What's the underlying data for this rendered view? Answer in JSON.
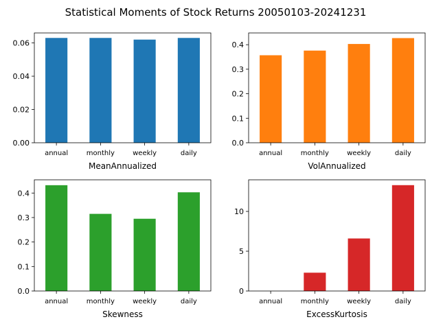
{
  "figure": {
    "title": "Statistical Moments of Stock Returns 20050103-20241231"
  },
  "chart_data": [
    {
      "type": "bar",
      "categories": [
        "annual",
        "monthly",
        "weekly",
        "daily"
      ],
      "values": [
        0.063,
        0.063,
        0.062,
        0.063
      ],
      "xlabel": "MeanAnnualized",
      "ylim": [
        0,
        0.066
      ],
      "yticks": [
        0.0,
        0.02,
        0.04,
        0.06
      ],
      "ytick_labels": [
        "0.00",
        "0.02",
        "0.04",
        "0.06"
      ],
      "color": "#1f77b4"
    },
    {
      "type": "bar",
      "categories": [
        "annual",
        "monthly",
        "weekly",
        "daily"
      ],
      "values": [
        0.357,
        0.376,
        0.403,
        0.427
      ],
      "xlabel": "VolAnnualized",
      "ylim": [
        0,
        0.448
      ],
      "yticks": [
        0.0,
        0.1,
        0.2,
        0.3,
        0.4
      ],
      "ytick_labels": [
        "0.0",
        "0.1",
        "0.2",
        "0.3",
        "0.4"
      ],
      "color": "#ff7f0e"
    },
    {
      "type": "bar",
      "categories": [
        "annual",
        "monthly",
        "weekly",
        "daily"
      ],
      "values": [
        0.432,
        0.315,
        0.295,
        0.403
      ],
      "xlabel": "Skewness",
      "ylim": [
        0,
        0.454
      ],
      "yticks": [
        0.0,
        0.1,
        0.2,
        0.3,
        0.4
      ],
      "ytick_labels": [
        "0.0",
        "0.1",
        "0.2",
        "0.3",
        "0.4"
      ],
      "color": "#2ca02c"
    },
    {
      "type": "bar",
      "categories": [
        "annual",
        "monthly",
        "weekly",
        "daily"
      ],
      "values": [
        0.0,
        2.3,
        6.6,
        13.3
      ],
      "xlabel": "ExcessKurtosis",
      "ylim": [
        0,
        13.97
      ],
      "yticks": [
        0,
        5,
        10
      ],
      "ytick_labels": [
        "0",
        "5",
        "10"
      ],
      "color": "#d62728"
    }
  ]
}
